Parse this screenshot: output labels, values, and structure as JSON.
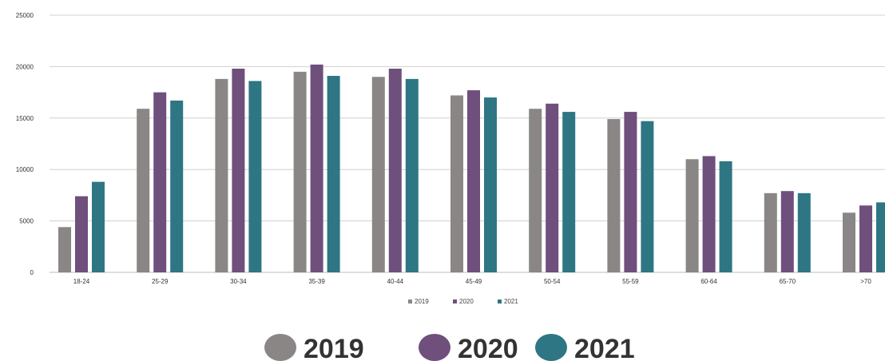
{
  "chart_data": {
    "type": "bar",
    "categories": [
      "18-24",
      "25-29",
      "30-34",
      "35-39",
      "40-44",
      "45-49",
      "50-54",
      "55-59",
      "60-64",
      "65-70",
      ">70"
    ],
    "series": [
      {
        "name": "2019",
        "color": "#8a8686",
        "values": [
          4400,
          15900,
          18800,
          19500,
          19000,
          17200,
          15900,
          14900,
          11000,
          7700,
          5800
        ]
      },
      {
        "name": "2020",
        "color": "#6f4f7c",
        "values": [
          7400,
          17500,
          19800,
          20200,
          19800,
          17700,
          16400,
          15600,
          11300,
          7900,
          6500
        ]
      },
      {
        "name": "2021",
        "color": "#2e7683",
        "values": [
          8800,
          16700,
          18600,
          19100,
          18800,
          17000,
          15600,
          14700,
          10800,
          7700,
          6800
        ]
      }
    ],
    "yticks": [
      "0",
      "5000",
      "10000",
      "15000",
      "20000",
      "25000"
    ],
    "ylim": [
      0,
      25000
    ],
    "grid": true,
    "legend": {
      "small": {
        "placement": "bottom-center",
        "labels": [
          "2019",
          "2020",
          "2021"
        ]
      },
      "large": {
        "placement": "bottom-center",
        "labels": [
          "2019",
          "2020",
          "2021"
        ]
      }
    }
  }
}
